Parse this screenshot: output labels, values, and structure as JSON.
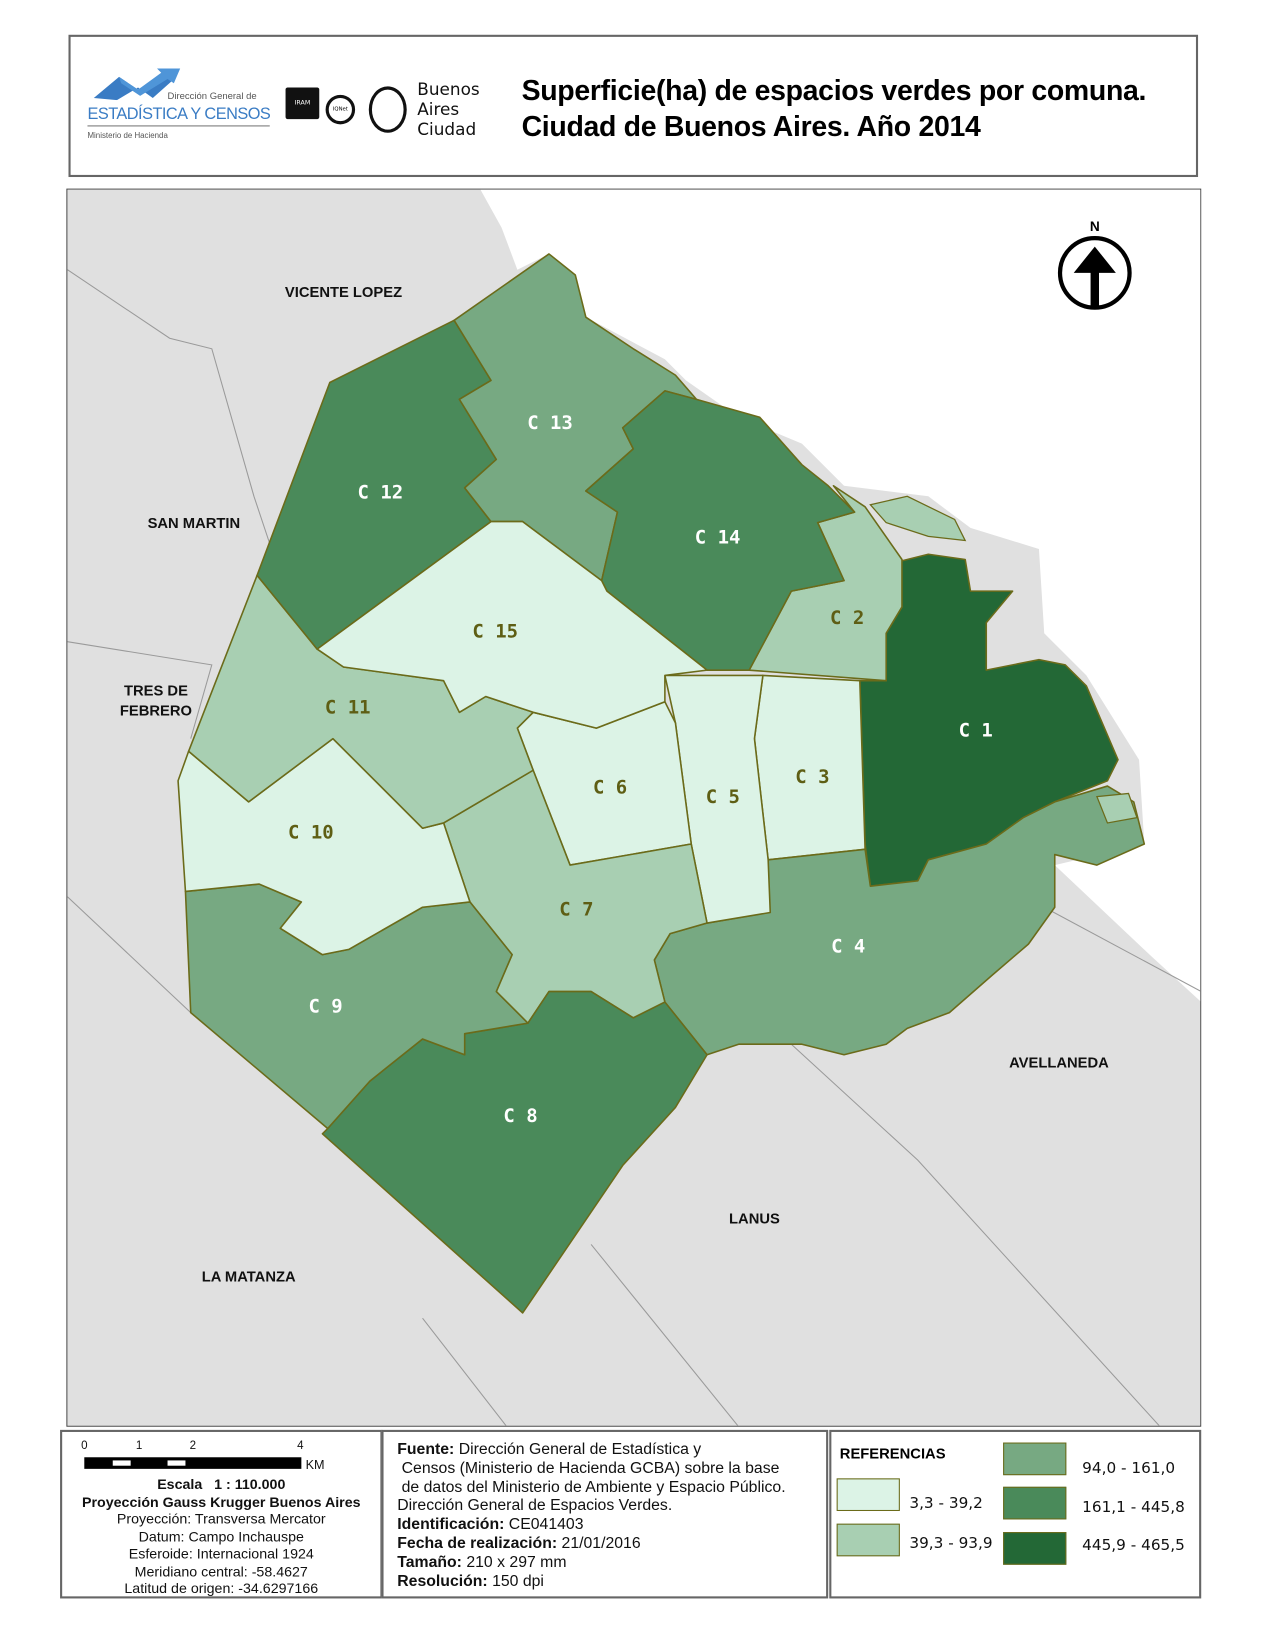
{
  "header": {
    "logos": {
      "dgec": {
        "line1": "Dirección General de",
        "line2": "ESTADÍSTICA Y CENSOS",
        "line3": "Ministerio de Hacienda"
      },
      "iram": "IRAM",
      "iqnet": "IQNet",
      "ba": [
        "Buenos",
        "Aires",
        "Ciudad"
      ]
    },
    "title_line1": "Superficie(ha) de espacios verdes por  comuna.",
    "title_line2": "Ciudad de Buenos Aires. Año 2014"
  },
  "map": {
    "north_label": "N",
    "neighbors": {
      "vicente_lopez": "VICENTE LOPEZ",
      "san_martin": "SAN MARTIN",
      "tres_de_febrero_1": "TRES DE",
      "tres_de_febrero_2": "FEBRERO",
      "avellaneda": "AVELLANEDA",
      "lanus": "LANUS",
      "la_matanza": "LA MATANZA"
    },
    "comunas": [
      {
        "label": "C 1",
        "class": 5
      },
      {
        "label": "C 2",
        "class": 2
      },
      {
        "label": "C 3",
        "class": 1
      },
      {
        "label": "C 4",
        "class": 3
      },
      {
        "label": "C 5",
        "class": 1
      },
      {
        "label": "C 6",
        "class": 1
      },
      {
        "label": "C 7",
        "class": 2
      },
      {
        "label": "C 8",
        "class": 4
      },
      {
        "label": "C 9",
        "class": 3
      },
      {
        "label": "C 10",
        "class": 1
      },
      {
        "label": "C 11",
        "class": 2
      },
      {
        "label": "C 12",
        "class": 4
      },
      {
        "label": "C 13",
        "class": 3
      },
      {
        "label": "C 14",
        "class": 4
      },
      {
        "label": "C 15",
        "class": 1
      }
    ],
    "colors": {
      "land": "#e0e0e0",
      "water": "#ffffff",
      "border": "#6b6b1a",
      "label_light": "#ffffff",
      "label_dark": "#5e5e14"
    }
  },
  "scale": {
    "ticks": [
      "0",
      "1",
      "2",
      "4"
    ],
    "unit": "KM",
    "escala_label": "Escala",
    "escala_value": "1 : 110.000",
    "projection_title": "Proyección Gauss Krugger Buenos Aires",
    "lines": [
      "Proyección: Transversa Mercator",
      "Datum: Campo Inchauspe",
      "Esferoide: Internacional 1924",
      "Meridiano central: -58.4627",
      "Latitud de origen: -34.6297166"
    ]
  },
  "source": {
    "fuente_label": "Fuente:",
    "fuente_line1": "Dirección General de Estadística y",
    "fuente_line2": "Censos (Ministerio de Hacienda GCBA) sobre la base",
    "fuente_line3": "de datos del Ministerio de Ambiente y Espacio Público.",
    "fuente_line4": "Dirección General de Espacios Verdes.",
    "id_label": "Identificación:",
    "id_value": "CE041403",
    "fecha_label": "Fecha de realización:",
    "fecha_value": "21/01/2016",
    "tamano_label": "Tamaño:",
    "tamano_value": "210 x 297 mm",
    "res_label": "Resolución:",
    "res_value": "150 dpi"
  },
  "legend": {
    "title": "REFERENCIAS",
    "classes": [
      {
        "range": "3,3 - 39,2",
        "color": "#dcf3e6"
      },
      {
        "range": "39,3 - 93,9",
        "color": "#a8cfb2"
      },
      {
        "range": "94,0 - 161,0",
        "color": "#77a982"
      },
      {
        "range": "161,1 - 445,8",
        "color": "#4a8a5a"
      },
      {
        "range": "445,9 - 465,5",
        "color": "#236836"
      }
    ]
  }
}
